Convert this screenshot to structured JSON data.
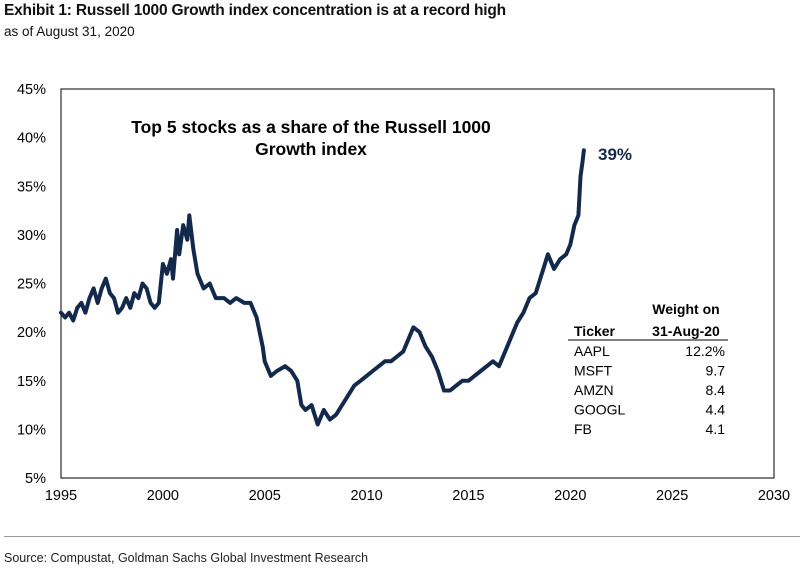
{
  "header": {
    "title": "Exhibit 1: Russell 1000 Growth index concentration is at a record high",
    "subtitle": "as of August 31, 2020"
  },
  "footer": {
    "source": "Source: Compustat, Goldman Sachs Global Investment Research"
  },
  "chart_data": {
    "type": "line",
    "title": "Top 5 stocks as a share of the Russell 1000 Growth index",
    "title_lines": [
      "Top 5 stocks as a share of the Russell 1000",
      "Growth index"
    ],
    "xlabel": "",
    "ylabel": "",
    "xlim": [
      1995,
      2030
    ],
    "ylim": [
      5,
      45
    ],
    "x_ticks": [
      1995,
      2000,
      2005,
      2010,
      2015,
      2020,
      2025,
      2030
    ],
    "y_ticks": [
      5,
      10,
      15,
      20,
      25,
      30,
      35,
      40,
      45
    ],
    "y_tick_format": "percent",
    "grid": false,
    "line_color": "#13294B",
    "end_label": "39%",
    "series": [
      {
        "x": [
          1995.0,
          1995.2,
          1995.4,
          1995.6,
          1995.8,
          1996.0,
          1996.2,
          1996.4,
          1996.6,
          1996.8,
          1997.0,
          1997.2,
          1997.4,
          1997.6,
          1997.8,
          1998.0,
          1998.2,
          1998.4,
          1998.6,
          1998.8,
          1999.0,
          1999.2,
          1999.4,
          1999.6,
          1999.8,
          2000.0,
          2000.2,
          2000.4,
          2000.5,
          2000.7,
          2000.8,
          2001.0,
          2001.2,
          2001.3,
          2001.5,
          2001.7,
          2002.0,
          2002.3,
          2002.6,
          2003.0,
          2003.3,
          2003.6,
          2004.0,
          2004.3,
          2004.6,
          2004.9,
          2005.0,
          2005.3,
          2005.6,
          2006.0,
          2006.3,
          2006.6,
          2006.8,
          2007.0,
          2007.3,
          2007.6,
          2007.9,
          2008.2,
          2008.5,
          2008.8,
          2009.1,
          2009.4,
          2009.7,
          2010.0,
          2010.3,
          2010.6,
          2010.9,
          2011.2,
          2011.5,
          2011.8,
          2012.0,
          2012.3,
          2012.6,
          2012.9,
          2013.2,
          2013.5,
          2013.8,
          2014.1,
          2014.4,
          2014.7,
          2015.0,
          2015.3,
          2015.6,
          2015.9,
          2016.2,
          2016.5,
          2016.8,
          2017.1,
          2017.4,
          2017.7,
          2018.0,
          2018.3,
          2018.6,
          2018.9,
          2019.2,
          2019.5,
          2019.8,
          2020.0,
          2020.2,
          2020.4,
          2020.5,
          2020.6,
          2020.67
        ],
        "y": [
          22.0,
          21.5,
          22.0,
          21.2,
          22.5,
          23.0,
          22.0,
          23.5,
          24.5,
          23.0,
          24.5,
          25.5,
          24.0,
          23.5,
          22.0,
          22.5,
          23.5,
          22.5,
          24.0,
          23.5,
          25.0,
          24.5,
          23.0,
          22.5,
          23.0,
          27.0,
          26.0,
          27.5,
          25.5,
          30.5,
          28.0,
          31.0,
          29.5,
          32.0,
          28.5,
          26.0,
          24.5,
          25.0,
          23.5,
          23.5,
          23.0,
          23.5,
          23.0,
          23.0,
          21.5,
          18.5,
          17.0,
          15.5,
          16.0,
          16.5,
          16.0,
          15.0,
          12.5,
          12.0,
          12.5,
          10.5,
          12.0,
          11.0,
          11.5,
          12.5,
          13.5,
          14.5,
          15.0,
          15.5,
          16.0,
          16.5,
          17.0,
          17.0,
          17.5,
          18.0,
          19.0,
          20.5,
          20.0,
          18.5,
          17.5,
          16.0,
          14.0,
          14.0,
          14.5,
          15.0,
          15.0,
          15.5,
          16.0,
          16.5,
          17.0,
          16.5,
          18.0,
          19.5,
          21.0,
          22.0,
          23.5,
          24.0,
          26.0,
          28.0,
          26.5,
          27.5,
          28.0,
          29.0,
          31.0,
          32.0,
          36.0,
          37.5,
          38.7
        ]
      }
    ],
    "table": {
      "headers": [
        "Ticker",
        "Weight on 31-Aug-20"
      ],
      "header_lines": [
        "Weight on",
        "31-Aug-20"
      ],
      "rows": [
        {
          "ticker": "AAPL",
          "weight": "12.2%"
        },
        {
          "ticker": "MSFT",
          "weight": "9.7"
        },
        {
          "ticker": "AMZN",
          "weight": "8.4"
        },
        {
          "ticker": "GOOGL",
          "weight": "4.4"
        },
        {
          "ticker": "FB",
          "weight": "4.1"
        }
      ]
    }
  }
}
